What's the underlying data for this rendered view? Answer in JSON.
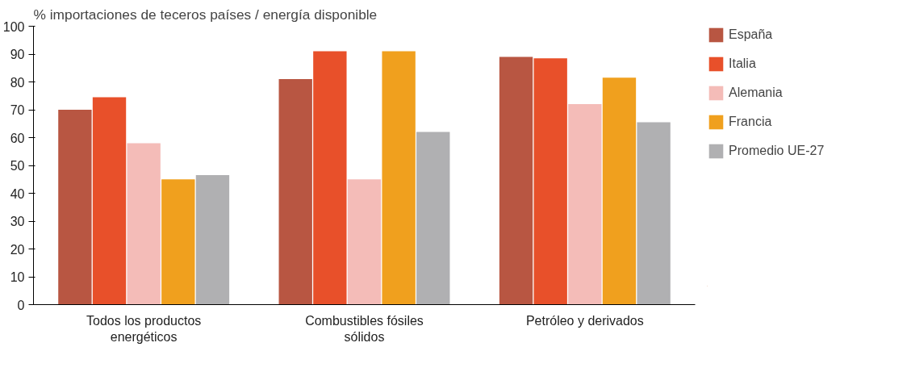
{
  "chart_data": {
    "type": "bar",
    "ylabel": "% importaciones de teceros países / energía disponible",
    "categories": [
      "Todos los productos energéticos",
      "Combustibles fósiles sólidos",
      "Petróleo y derivados"
    ],
    "series": [
      {
        "name": "España",
        "color": "#b85642",
        "values": [
          70,
          81,
          89
        ]
      },
      {
        "name": "Italia",
        "color": "#e8502a",
        "values": [
          74.5,
          91,
          88.5
        ]
      },
      {
        "name": "Alemania",
        "color": "#f4bcb8",
        "values": [
          58,
          45,
          72
        ]
      },
      {
        "name": "Francia",
        "color": "#f0a01e",
        "values": [
          45,
          91,
          81.5
        ]
      },
      {
        "name": "Promedio UE-27",
        "color": "#b0b0b2",
        "values": [
          46.5,
          62,
          65.5
        ]
      }
    ],
    "ylim": [
      0,
      100
    ],
    "yticks": [
      0,
      10,
      20,
      30,
      40,
      50,
      60,
      70,
      80,
      90,
      100
    ],
    "grid": false,
    "legend": "right"
  }
}
